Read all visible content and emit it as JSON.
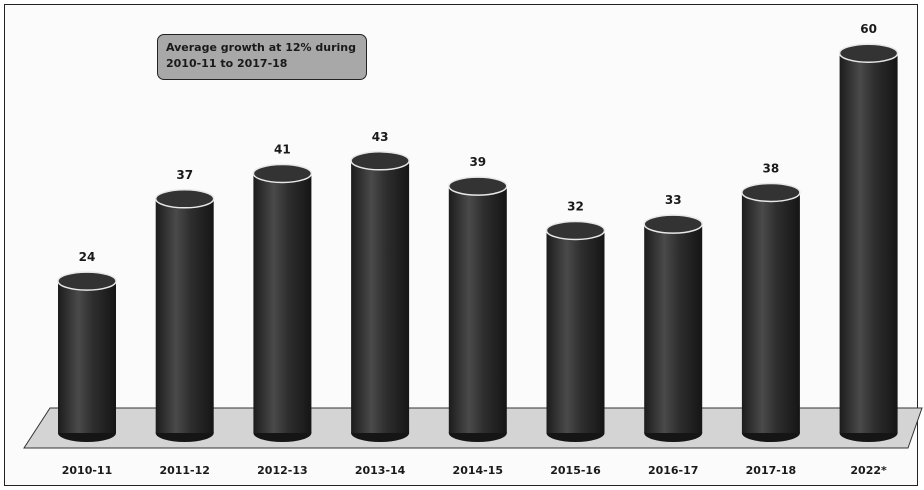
{
  "chart_data": {
    "type": "bar",
    "style": "3d-cylinder",
    "categories": [
      "2010-11",
      "2011-12",
      "2012-13",
      "2013-14",
      "2014-15",
      "2015-16",
      "2016-17",
      "2017-18",
      "2022*"
    ],
    "values": [
      24,
      37,
      41,
      43,
      39,
      32,
      33,
      38,
      60
    ],
    "data_labels": [
      "24",
      "37",
      "41",
      "43",
      "39",
      "32",
      "33",
      "38",
      "60"
    ],
    "title": "",
    "xlabel": "",
    "ylabel": "",
    "ylim": [
      0,
      60
    ],
    "grid": false,
    "legend": "none",
    "annotation": "Average growth at 12% during\n2010-11 to 2017-18",
    "colors": {
      "bar": "#2b2b2b",
      "bar_highlight": "#555555",
      "floor": "#cfcfcf",
      "annotation_bg": "#a8a8a8"
    }
  }
}
